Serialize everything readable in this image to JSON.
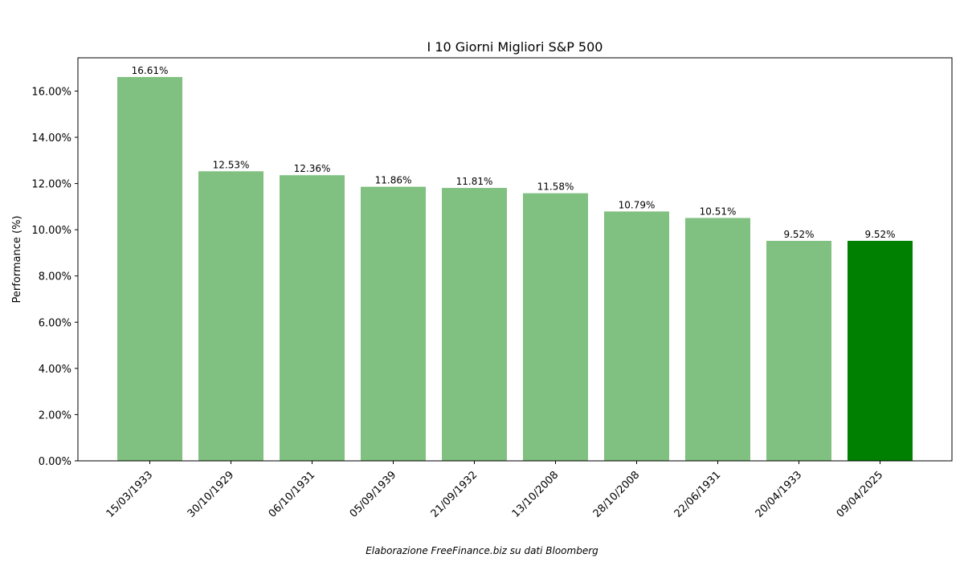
{
  "chart_data": {
    "type": "bar",
    "title": "I 10 Giorni Migliori S&P 500",
    "xlabel": "",
    "ylabel": "Performance (%)",
    "categories": [
      "15/03/1933",
      "30/10/1929",
      "06/10/1931",
      "05/09/1939",
      "21/09/1932",
      "13/10/2008",
      "28/10/2008",
      "22/06/1931",
      "20/04/1933",
      "09/04/2025"
    ],
    "values": [
      16.61,
      12.53,
      12.36,
      11.86,
      11.81,
      11.58,
      10.79,
      10.51,
      9.52,
      9.52
    ],
    "value_labels": [
      "16.61%",
      "12.53%",
      "12.36%",
      "11.86%",
      "11.81%",
      "11.58%",
      "10.79%",
      "10.51%",
      "9.52%",
      "9.52%"
    ],
    "highlight_index": 9,
    "ylim": [
      0,
      17.44
    ],
    "yticks": [
      0,
      2,
      4,
      6,
      8,
      10,
      12,
      14,
      16
    ],
    "ytick_labels": [
      "0.00%",
      "2.00%",
      "4.00%",
      "6.00%",
      "8.00%",
      "10.00%",
      "12.00%",
      "14.00%",
      "16.00%"
    ],
    "grid": false,
    "colors": {
      "bar": "#80c080",
      "highlight": "#008000",
      "axis": "#000000"
    }
  },
  "footer": {
    "credit": "Elaborazione FreeFinance.biz su dati Bloomberg"
  }
}
